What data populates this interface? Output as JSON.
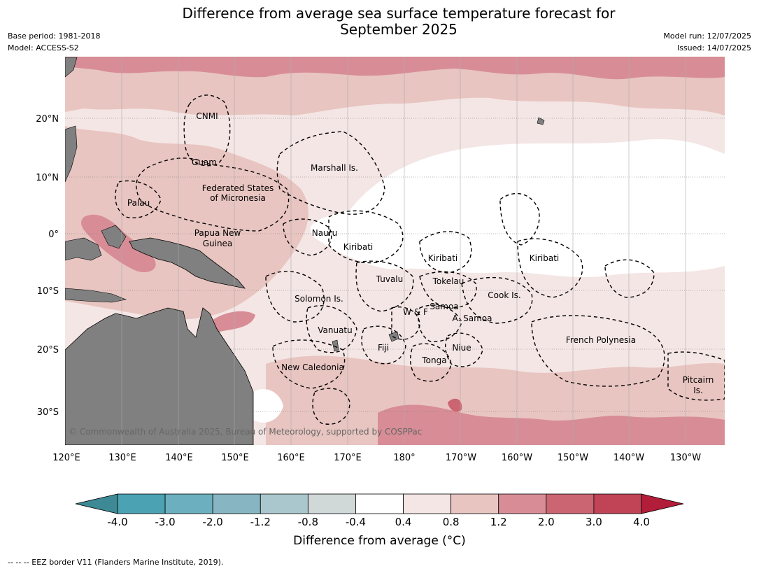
{
  "header": {
    "title_line1": "Difference from average sea surface temperature forecast for",
    "title_line2": "September 2025",
    "base_period": "Base period: 1981-2018",
    "model": "Model: ACCESS-S2",
    "model_run": "Model run: 12/07/2025",
    "issued": "Issued: 14/07/2025"
  },
  "map": {
    "lon_ticks": [
      "120°E",
      "130°E",
      "140°E",
      "150°E",
      "160°E",
      "170°E",
      "180°",
      "170°W",
      "160°W",
      "150°W",
      "140°W",
      "130°W"
    ],
    "lat_ticks": [
      "20°N",
      "10°N",
      "0°",
      "10°S",
      "20°S",
      "30°S"
    ],
    "regions": [
      {
        "name": "CNMI"
      },
      {
        "name": "Guam"
      },
      {
        "name": "Marshall Is."
      },
      {
        "name": "Palau"
      },
      {
        "name": "Federated States"
      },
      {
        "name": "of Micronesia"
      },
      {
        "name": "Papua New"
      },
      {
        "name": "Guinea"
      },
      {
        "name": "Nauru"
      },
      {
        "name": "Kiribati"
      },
      {
        "name": "Kiribati"
      },
      {
        "name": "Kiribati"
      },
      {
        "name": "Tuvalu"
      },
      {
        "name": "Tokelau"
      },
      {
        "name": "Solomon Is."
      },
      {
        "name": "Cook Is."
      },
      {
        "name": "Samoa"
      },
      {
        "name": "W & F"
      },
      {
        "name": "A. Samoa"
      },
      {
        "name": "Vanuatu"
      },
      {
        "name": "Fiji"
      },
      {
        "name": "Niue"
      },
      {
        "name": "French Polynesia"
      },
      {
        "name": "Tonga"
      },
      {
        "name": "New Caledonia"
      },
      {
        "name": "Pitcairn"
      },
      {
        "name": "Is."
      }
    ],
    "copyright": "© Commonwealth of Australia 2025, Bureau of Meteorology, supported by COSPPac"
  },
  "colorbar": {
    "ticks": [
      "-4.0",
      "-3.0",
      "-2.0",
      "-1.2",
      "-0.8",
      "-0.4",
      "0.4",
      "0.8",
      "1.2",
      "2.0",
      "3.0",
      "4.0"
    ],
    "colors": [
      "#3d8a96",
      "#4aa2b3",
      "#6cb0bf",
      "#87b6c2",
      "#a9c7cc",
      "#d0d8d8",
      "#ffffff",
      "#f4e6e5",
      "#e8c5c1",
      "#d88d96",
      "#cb6571",
      "#c04456",
      "#b21d3a"
    ],
    "title": "Difference from average (°C)"
  },
  "legend": {
    "text": "--  --  -- EEZ border V11 (Flanders Marine Institute, 2019)."
  }
}
